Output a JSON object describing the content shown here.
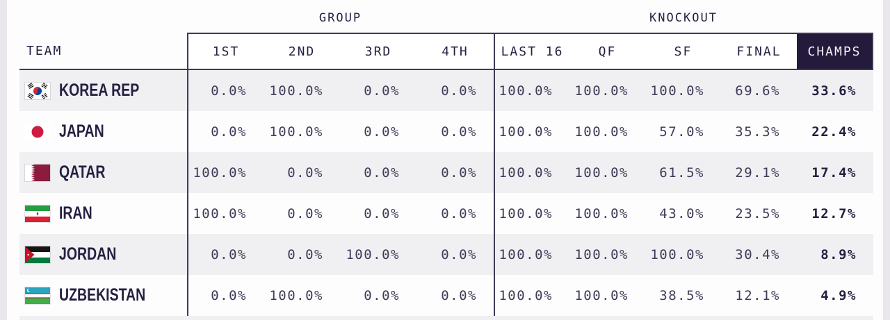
{
  "table": {
    "team_header": "TEAM",
    "sections": [
      {
        "label": "GROUP",
        "columns": [
          "1ST",
          "2ND",
          "3RD",
          "4TH"
        ]
      },
      {
        "label": "KNOCKOUT",
        "columns": [
          "LAST 16",
          "QF",
          "SF",
          "FINAL",
          "CHAMPS"
        ]
      }
    ],
    "highlight_column": "CHAMPS",
    "rows": [
      {
        "team": "KOREA REP",
        "flag": "south-korea",
        "group": [
          "0.0%",
          "100.0%",
          "0.0%",
          "0.0%"
        ],
        "knockout": [
          "100.0%",
          "100.0%",
          "100.0%",
          "69.6%",
          "33.6%"
        ]
      },
      {
        "team": "JAPAN",
        "flag": "japan",
        "group": [
          "0.0%",
          "100.0%",
          "0.0%",
          "0.0%"
        ],
        "knockout": [
          "100.0%",
          "100.0%",
          "57.0%",
          "35.3%",
          "22.4%"
        ]
      },
      {
        "team": "QATAR",
        "flag": "qatar",
        "group": [
          "100.0%",
          "0.0%",
          "0.0%",
          "0.0%"
        ],
        "knockout": [
          "100.0%",
          "100.0%",
          "61.5%",
          "29.1%",
          "17.4%"
        ]
      },
      {
        "team": "IRAN",
        "flag": "iran",
        "group": [
          "100.0%",
          "0.0%",
          "0.0%",
          "0.0%"
        ],
        "knockout": [
          "100.0%",
          "100.0%",
          "43.0%",
          "23.5%",
          "12.7%"
        ]
      },
      {
        "team": "JORDAN",
        "flag": "jordan",
        "group": [
          "0.0%",
          "0.0%",
          "100.0%",
          "0.0%"
        ],
        "knockout": [
          "100.0%",
          "100.0%",
          "100.0%",
          "30.4%",
          "8.9%"
        ]
      },
      {
        "team": "UZBEKISTAN",
        "flag": "uzbekistan",
        "group": [
          "0.0%",
          "100.0%",
          "0.0%",
          "0.0%"
        ],
        "knockout": [
          "100.0%",
          "100.0%",
          "38.5%",
          "12.1%",
          "4.9%"
        ]
      }
    ]
  },
  "chart_data": {
    "type": "table",
    "row_header": "TEAM",
    "column_groups": [
      {
        "label": "GROUP",
        "columns": [
          "1ST",
          "2ND",
          "3RD",
          "4TH"
        ]
      },
      {
        "label": "KNOCKOUT",
        "columns": [
          "LAST 16",
          "QF",
          "SF",
          "FINAL",
          "CHAMPS"
        ]
      }
    ],
    "teams": [
      "KOREA REP",
      "JAPAN",
      "QATAR",
      "IRAN",
      "JORDAN",
      "UZBEKISTAN"
    ],
    "values_percent": [
      [
        0.0,
        100.0,
        0.0,
        0.0,
        100.0,
        100.0,
        100.0,
        69.6,
        33.6
      ],
      [
        0.0,
        100.0,
        0.0,
        0.0,
        100.0,
        100.0,
        57.0,
        35.3,
        22.4
      ],
      [
        100.0,
        0.0,
        0.0,
        0.0,
        100.0,
        100.0,
        61.5,
        29.1,
        17.4
      ],
      [
        100.0,
        0.0,
        0.0,
        0.0,
        100.0,
        100.0,
        43.0,
        23.5,
        12.7
      ],
      [
        0.0,
        0.0,
        100.0,
        0.0,
        100.0,
        100.0,
        100.0,
        30.4,
        8.9
      ],
      [
        0.0,
        100.0,
        0.0,
        0.0,
        100.0,
        100.0,
        38.5,
        12.1,
        4.9
      ]
    ]
  },
  "colors": {
    "champs_header_bg": "#241a3c",
    "row_alternate_bg": "#f0eff2",
    "border_line": "#3e3954",
    "heading_text": "#251f40",
    "value_text": "#413b57",
    "page_background": "#e9e7eb"
  }
}
